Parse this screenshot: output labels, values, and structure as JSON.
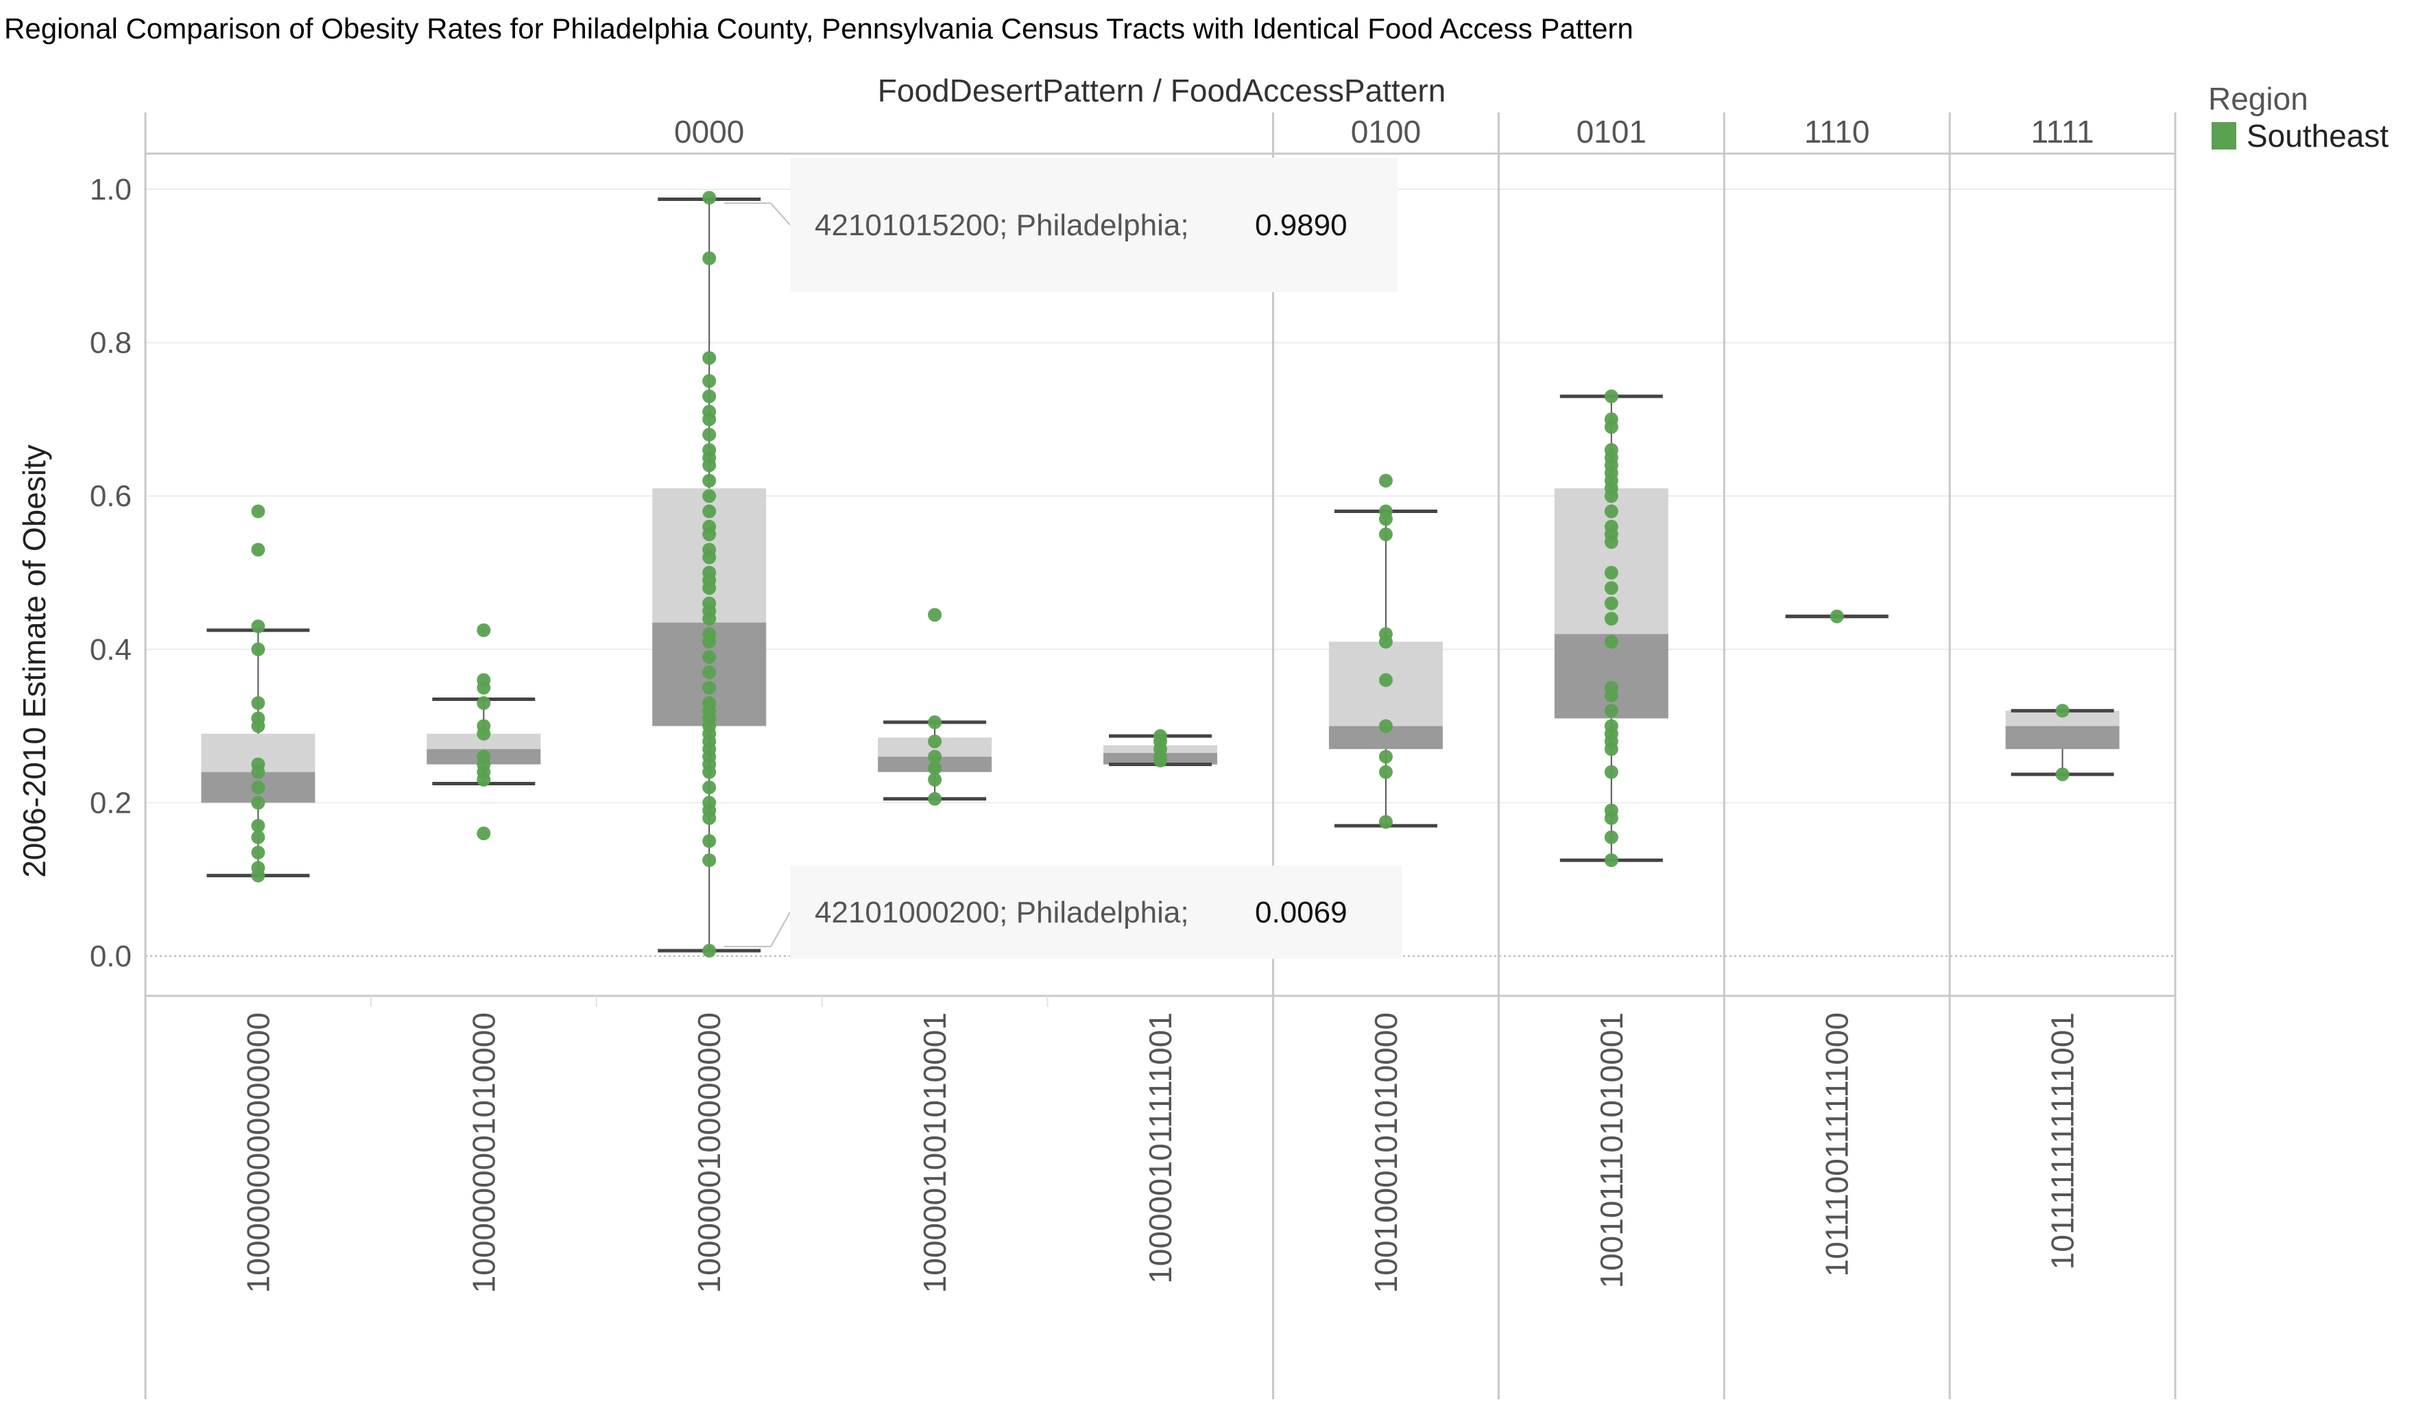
{
  "chart_data": {
    "type": "box",
    "title": "Regional Comparison of Obesity Rates for Philadelphia County, Pennsylvania Census Tracts with Identical Food Access Pattern",
    "column_header": "FoodDesertPattern  /  FoodAccessPattern",
    "ylabel": "2006-2010 Estimate of Obesity",
    "ylim": [
      -0.05,
      1.05
    ],
    "yticks": [
      "0.0",
      "0.2",
      "0.4",
      "0.6",
      "0.8",
      "1.0"
    ],
    "ytick_values": [
      0,
      0.2,
      0.4,
      0.6,
      0.8,
      1.0
    ],
    "legend": {
      "title": "Region",
      "items": [
        {
          "label": "Southeast",
          "color": "#59a14f"
        }
      ]
    },
    "colors": {
      "point": "#59a14f",
      "box_light": "#d4d4d4",
      "box_dark": "#9a9a9a",
      "whisker": "#555555",
      "grid": "#ececec"
    },
    "patterns": [
      {
        "label": "0000",
        "categories": [
          {
            "label": "1000000000000000",
            "whisker_low": 0.105,
            "q1": 0.2,
            "median": 0.24,
            "q3": 0.29,
            "whisker_high": 0.425,
            "points": [
              0.58,
              0.53,
              0.43,
              0.4,
              0.33,
              0.31,
              0.3,
              0.25,
              0.24,
              0.22,
              0.2,
              0.17,
              0.155,
              0.135,
              0.115,
              0.105
            ]
          },
          {
            "label": "1000000001010000",
            "whisker_low": 0.225,
            "q1": 0.25,
            "median": 0.27,
            "q3": 0.29,
            "whisker_high": 0.335,
            "points": [
              0.425,
              0.36,
              0.35,
              0.33,
              0.3,
              0.29,
              0.26,
              0.25,
              0.24,
              0.23,
              0.16
            ]
          },
          {
            "label": "1000000100000000",
            "whisker_low": 0.007,
            "q1": 0.3,
            "median": 0.435,
            "q3": 0.61,
            "whisker_high": 0.987,
            "points": [
              0.989,
              0.91,
              0.78,
              0.75,
              0.73,
              0.71,
              0.7,
              0.68,
              0.66,
              0.65,
              0.64,
              0.62,
              0.6,
              0.58,
              0.56,
              0.55,
              0.53,
              0.52,
              0.5,
              0.49,
              0.48,
              0.46,
              0.45,
              0.44,
              0.42,
              0.41,
              0.39,
              0.37,
              0.35,
              0.33,
              0.32,
              0.31,
              0.3,
              0.29,
              0.28,
              0.27,
              0.26,
              0.25,
              0.24,
              0.22,
              0.2,
              0.19,
              0.18,
              0.15,
              0.125,
              0.007
            ]
          },
          {
            "label": "1000001001010001",
            "whisker_low": 0.205,
            "q1": 0.24,
            "median": 0.26,
            "q3": 0.285,
            "whisker_high": 0.305,
            "points": [
              0.445,
              0.305,
              0.28,
              0.26,
              0.245,
              0.23,
              0.205
            ]
          },
          {
            "label": "1000001011111001",
            "whisker_low": 0.25,
            "q1": 0.25,
            "median": 0.265,
            "q3": 0.275,
            "whisker_high": 0.287,
            "points": [
              0.287,
              0.28,
              0.27,
              0.26,
              0.255
            ]
          }
        ]
      },
      {
        "label": "0100",
        "categories": [
          {
            "label": "1001000101010000",
            "whisker_low": 0.17,
            "q1": 0.27,
            "median": 0.3,
            "q3": 0.41,
            "whisker_high": 0.58,
            "points": [
              0.62,
              0.58,
              0.57,
              0.55,
              0.42,
              0.41,
              0.36,
              0.3,
              0.26,
              0.24,
              0.175
            ]
          }
        ]
      },
      {
        "label": "0101",
        "categories": [
          {
            "label": "1001011101010001",
            "whisker_low": 0.125,
            "q1": 0.31,
            "median": 0.42,
            "q3": 0.61,
            "whisker_high": 0.73,
            "points": [
              0.73,
              0.7,
              0.69,
              0.66,
              0.65,
              0.64,
              0.63,
              0.62,
              0.61,
              0.6,
              0.58,
              0.56,
              0.55,
              0.54,
              0.5,
              0.48,
              0.46,
              0.44,
              0.41,
              0.35,
              0.34,
              0.32,
              0.3,
              0.29,
              0.28,
              0.27,
              0.24,
              0.19,
              0.18,
              0.155,
              0.125
            ]
          }
        ]
      },
      {
        "label": "1110",
        "categories": [
          {
            "label": "1011100111111000",
            "whisker_low": 0.443,
            "q1": 0.443,
            "median": 0.443,
            "q3": 0.443,
            "whisker_high": 0.443,
            "points": [
              0.443
            ]
          }
        ]
      },
      {
        "label": "1111",
        "categories": [
          {
            "label": "1011111111111001",
            "whisker_low": 0.237,
            "q1": 0.27,
            "median": 0.3,
            "q3": 0.32,
            "whisker_high": 0.32,
            "points": [
              0.32,
              0.237
            ]
          }
        ]
      }
    ],
    "annotations": [
      {
        "text": "42101015200; Philadelphia;",
        "value": "0.9890",
        "point_value": 0.989,
        "category": "1000000100000000"
      },
      {
        "text": "42101000200; Philadelphia;",
        "value": "0.0069",
        "point_value": 0.007,
        "category": "1000000100000000"
      }
    ]
  }
}
